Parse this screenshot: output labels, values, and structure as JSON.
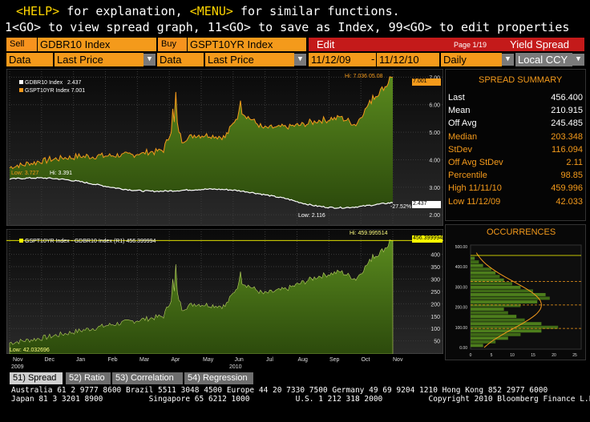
{
  "header": {
    "line1": {
      "help": "<HELP>",
      "t1": " for explanation, ",
      "menu": "<MENU>",
      "t2": " for similar functions."
    },
    "line2": "1<GO> to view spread graph, 11<GO> to save as Index, 99<GO> to edit properties"
  },
  "toolbar": {
    "sell_label": "Sell",
    "sell_ticker": "GDBR10 Index",
    "buy_label": "Buy",
    "buy_ticker": "GSPT10YR Index",
    "edit_label": "Edit",
    "page": "Page 1/19",
    "title": "Yield Spread",
    "data1": "Data",
    "field1": "Last Price",
    "data2": "Data",
    "field2": "Last Price",
    "date_from": "11/12/09",
    "date_to": "11/12/10",
    "period": "Daily",
    "currency": "Local CCY"
  },
  "upper_chart": {
    "legend": [
      {
        "name": "GDBR10 Index",
        "value": "2.437"
      },
      {
        "name": "GSPT10YR Index",
        "value": "7.001"
      }
    ],
    "annotations": {
      "hi": "Hi: 7.036",
      "hi_date": "05.08",
      "low1": "Low: 3.727",
      "hi2": "Hi: 3.391",
      "low2": "Low: 2.116",
      "pct": "-27.52%",
      "last_orange": "7.001",
      "last_white": "2.437"
    },
    "yticks": [
      "7.00",
      "6.00",
      "5.00",
      "4.00",
      "3.00",
      "2.00"
    ],
    "colors": {
      "orange": "#f49a1b",
      "green": "#4a7a18",
      "white": "#ffffff"
    }
  },
  "lower_chart": {
    "legend": "GSPT10YR Index - GDBR10 Index (R1) 456.399994",
    "annotations": {
      "hi": "Hi: 459.995514",
      "last": "456.399994",
      "low": "Low: 42.032696"
    },
    "yticks": [
      "400",
      "350",
      "300",
      "250",
      "200",
      "150",
      "100",
      "50"
    ],
    "xmonths": [
      "Nov",
      "Dec",
      "Jan",
      "Feb",
      "Mar",
      "Apr",
      "May",
      "Jun",
      "Jul",
      "Aug",
      "Sep",
      "Oct",
      "Nov"
    ],
    "xyears": [
      "2009",
      "2010"
    ]
  },
  "summary": {
    "title": "SPREAD SUMMARY",
    "rows": [
      {
        "k": "Last",
        "v": "456.400",
        "c": "#ffffff"
      },
      {
        "k": "Mean",
        "v": "210.915",
        "c": "#ffffff"
      },
      {
        "k": "Off Avg",
        "v": "245.485",
        "c": "#ffffff"
      },
      {
        "k": "Median",
        "v": "203.348",
        "c": "#f49a1b"
      },
      {
        "k": "StDev",
        "v": "116.094",
        "c": "#f49a1b"
      },
      {
        "k": "Off Avg StDev",
        "v": "2.11",
        "c": "#f49a1b"
      },
      {
        "k": "Percentile",
        "v": "98.85",
        "c": "#f49a1b"
      },
      {
        "k": "High 11/11/10",
        "v": "459.996",
        "c": "#f49a1b"
      },
      {
        "k": "Low 11/12/09",
        "v": "42.033",
        "c": "#f49a1b"
      }
    ]
  },
  "occurrences": {
    "title": "OCCURRENCES",
    "yticks": [
      "500.00",
      "400.00",
      "300.00",
      "200.00",
      "100.00",
      "0.00"
    ],
    "xticks": [
      "0",
      "5",
      "10",
      "15",
      "20",
      "25"
    ]
  },
  "tabs": [
    {
      "label": "51) Spread",
      "active": true
    },
    {
      "label": "52) Ratio",
      "active": false
    },
    {
      "label": "53) Correlation",
      "active": false
    },
    {
      "label": "54) Regression",
      "active": false
    }
  ],
  "footer": {
    "line1": "Australia 61 2 9777 8600 Brazil 5511 3048 4500 Europe 44 20 7330 7500 Germany 49 69 9204 1210 Hong Kong 852 2977 6000",
    "line2": "Japan 81 3 3201 8900          Singapore 65 6212 1000          U.S. 1 212 318 2000          Copyright 2010 Bloomberg Finance L.P."
  }
}
